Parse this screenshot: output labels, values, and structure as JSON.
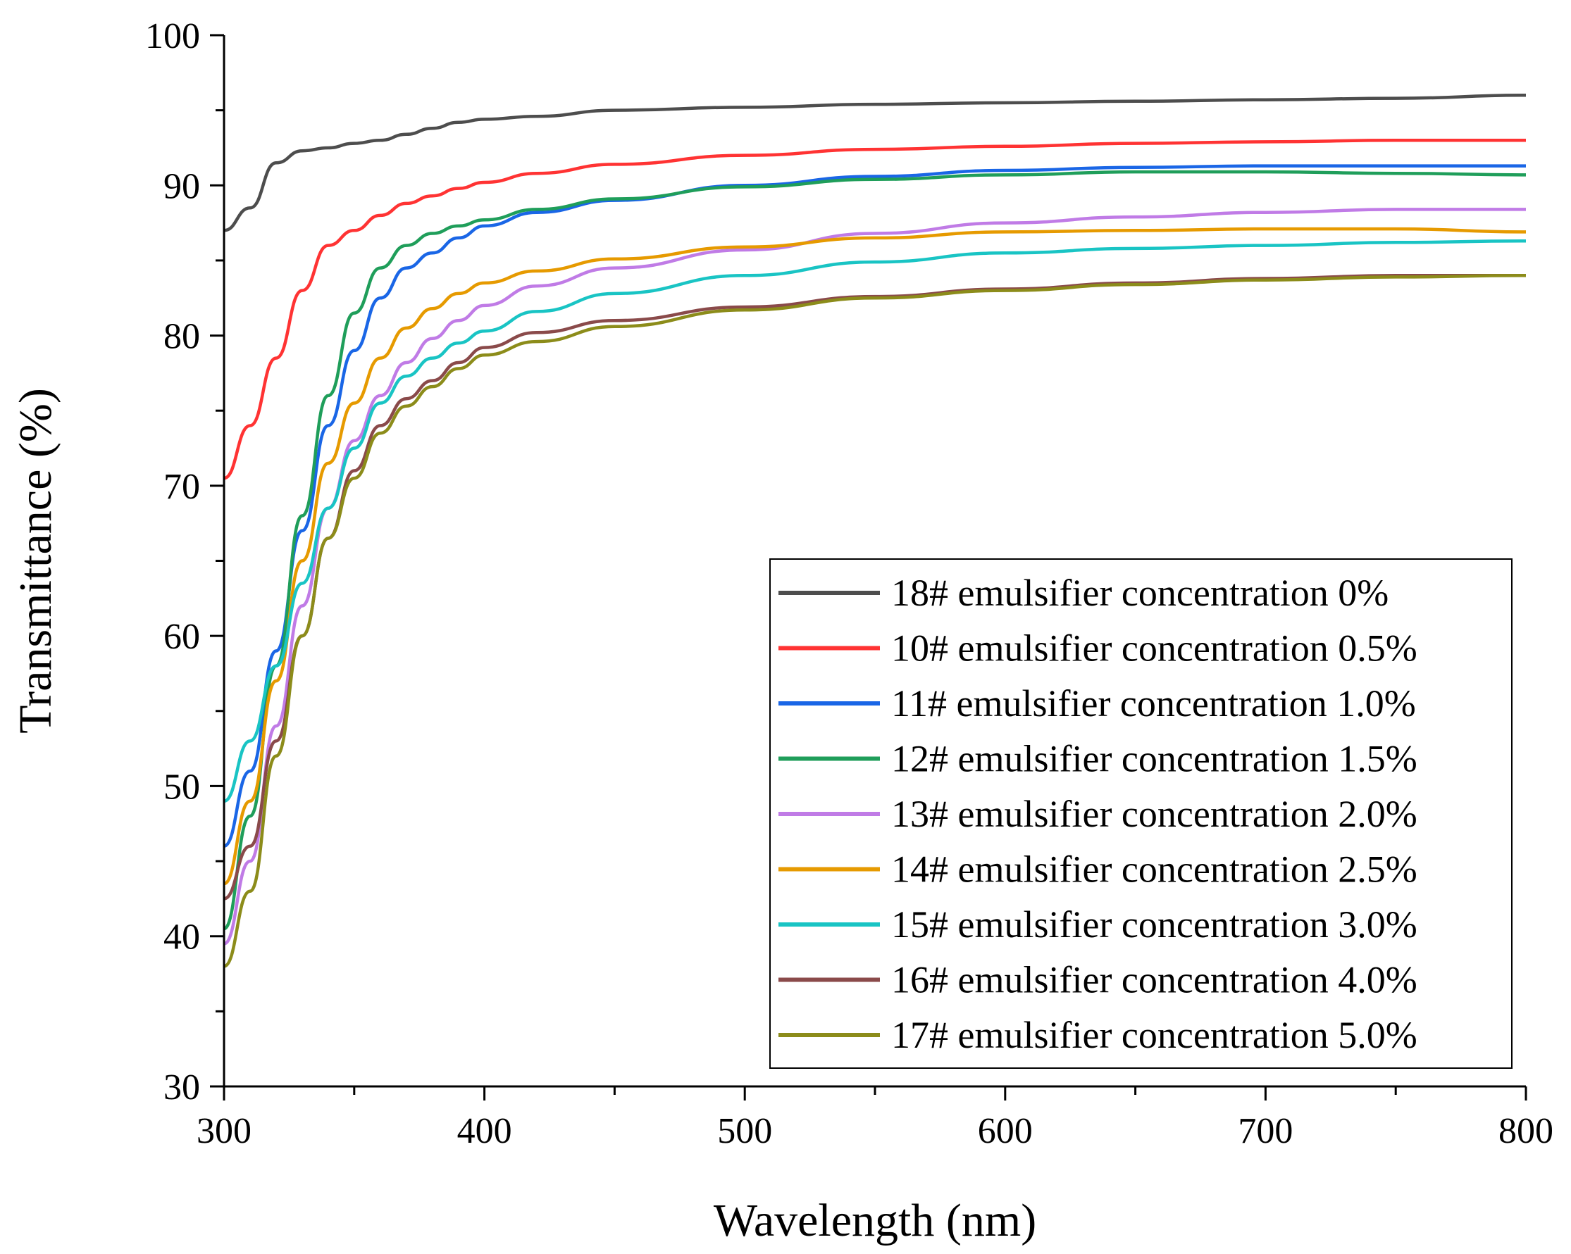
{
  "chart_data": {
    "type": "line",
    "title": "",
    "xlabel": "Wavelength (nm)",
    "ylabel": "Transmittance (%)",
    "xlim": [
      300,
      800
    ],
    "ylim": [
      30,
      100
    ],
    "xticks": [
      300,
      400,
      500,
      600,
      700,
      800
    ],
    "yticks": [
      30,
      40,
      50,
      60,
      70,
      80,
      90,
      100
    ],
    "grid": false,
    "legend_position": "bottom-right",
    "series": [
      {
        "name": "18# emulsifier concentration 0%",
        "color": "#4d4d4d",
        "x": [
          300,
          310,
          320,
          330,
          340,
          350,
          360,
          370,
          380,
          390,
          400,
          420,
          450,
          500,
          550,
          600,
          650,
          700,
          750,
          800
        ],
        "y": [
          87.0,
          88.5,
          91.5,
          92.3,
          92.5,
          92.8,
          93.0,
          93.4,
          93.8,
          94.2,
          94.4,
          94.6,
          95.0,
          95.2,
          95.4,
          95.5,
          95.6,
          95.7,
          95.8,
          96.0
        ]
      },
      {
        "name": "10# emulsifier concentration 0.5%",
        "color": "#ff3333",
        "x": [
          300,
          310,
          320,
          330,
          340,
          350,
          360,
          370,
          380,
          390,
          400,
          420,
          450,
          500,
          550,
          600,
          650,
          700,
          750,
          800
        ],
        "y": [
          70.5,
          74.0,
          78.5,
          83.0,
          86.0,
          87.0,
          88.0,
          88.8,
          89.3,
          89.8,
          90.2,
          90.8,
          91.4,
          92.0,
          92.4,
          92.6,
          92.8,
          92.9,
          93.0,
          93.0
        ]
      },
      {
        "name": "11# emulsifier concentration 1.0%",
        "color": "#1a66e6",
        "x": [
          300,
          310,
          320,
          330,
          340,
          350,
          360,
          370,
          380,
          390,
          400,
          420,
          450,
          500,
          550,
          600,
          650,
          700,
          750,
          800
        ],
        "y": [
          46.0,
          51.0,
          59.0,
          67.0,
          74.0,
          79.0,
          82.5,
          84.5,
          85.5,
          86.5,
          87.3,
          88.2,
          89.0,
          90.0,
          90.6,
          91.0,
          91.2,
          91.3,
          91.3,
          91.3
        ]
      },
      {
        "name": "12# emulsifier concentration 1.5%",
        "color": "#1f9e5a",
        "x": [
          300,
          310,
          320,
          330,
          340,
          350,
          360,
          370,
          380,
          390,
          400,
          420,
          450,
          500,
          550,
          600,
          650,
          700,
          750,
          800
        ],
        "y": [
          40.5,
          48.0,
          58.0,
          68.0,
          76.0,
          81.5,
          84.5,
          86.0,
          86.8,
          87.3,
          87.7,
          88.4,
          89.1,
          89.9,
          90.4,
          90.7,
          90.9,
          90.9,
          90.8,
          90.7
        ]
      },
      {
        "name": "13# emulsifier concentration 2.0%",
        "color": "#c07be6",
        "x": [
          300,
          310,
          320,
          330,
          340,
          350,
          360,
          370,
          380,
          390,
          400,
          420,
          450,
          500,
          550,
          600,
          650,
          700,
          750,
          800
        ],
        "y": [
          39.5,
          45.0,
          54.0,
          62.0,
          68.5,
          73.0,
          76.0,
          78.2,
          79.8,
          81.0,
          82.0,
          83.3,
          84.5,
          85.7,
          86.8,
          87.5,
          87.9,
          88.2,
          88.4,
          88.4
        ]
      },
      {
        "name": "14# emulsifier concentration 2.5%",
        "color": "#e69a00",
        "x": [
          300,
          310,
          320,
          330,
          340,
          350,
          360,
          370,
          380,
          390,
          400,
          420,
          450,
          500,
          550,
          600,
          650,
          700,
          750,
          800
        ],
        "y": [
          43.5,
          49.0,
          57.0,
          65.0,
          71.5,
          75.5,
          78.5,
          80.5,
          81.8,
          82.8,
          83.5,
          84.3,
          85.1,
          85.9,
          86.5,
          86.9,
          87.0,
          87.1,
          87.1,
          86.9
        ]
      },
      {
        "name": "15# emulsifier concentration 3.0%",
        "color": "#19c4c4",
        "x": [
          300,
          310,
          320,
          330,
          340,
          350,
          360,
          370,
          380,
          390,
          400,
          420,
          450,
          500,
          550,
          600,
          650,
          700,
          750,
          800
        ],
        "y": [
          49.0,
          53.0,
          58.0,
          63.5,
          68.5,
          72.5,
          75.5,
          77.3,
          78.5,
          79.5,
          80.3,
          81.6,
          82.8,
          84.0,
          84.9,
          85.5,
          85.8,
          86.0,
          86.2,
          86.3
        ]
      },
      {
        "name": "16# emulsifier concentration 4.0%",
        "color": "#8a4a4a",
        "x": [
          300,
          310,
          320,
          330,
          340,
          350,
          360,
          370,
          380,
          390,
          400,
          420,
          450,
          500,
          550,
          600,
          650,
          700,
          750,
          800
        ],
        "y": [
          42.5,
          46.0,
          53.0,
          60.0,
          66.5,
          71.0,
          74.0,
          75.8,
          77.0,
          78.2,
          79.2,
          80.2,
          81.0,
          81.9,
          82.6,
          83.1,
          83.5,
          83.8,
          84.0,
          84.0
        ]
      },
      {
        "name": "17# emulsifier concentration 5.0%",
        "color": "#8c8c1a",
        "x": [
          300,
          310,
          320,
          330,
          340,
          350,
          360,
          370,
          380,
          390,
          400,
          420,
          450,
          500,
          550,
          600,
          650,
          700,
          750,
          800
        ],
        "y": [
          38.0,
          43.0,
          52.0,
          60.0,
          66.5,
          70.5,
          73.5,
          75.3,
          76.6,
          77.8,
          78.7,
          79.6,
          80.6,
          81.7,
          82.5,
          83.0,
          83.4,
          83.7,
          83.9,
          84.0
        ]
      }
    ]
  }
}
